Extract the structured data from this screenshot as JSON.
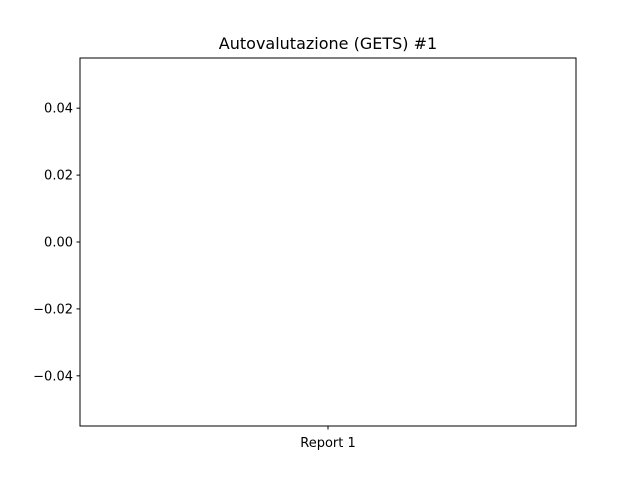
{
  "chart_data": {
    "type": "bar",
    "title": "Autovalutazione (GETS) #1",
    "xlabel": "",
    "ylabel": "",
    "categories": [
      "Report 1"
    ],
    "values": [
      0
    ],
    "ylim": [
      -0.055,
      0.055
    ],
    "yticks": [
      0.04,
      0.02,
      0.0,
      -0.02,
      -0.04
    ],
    "ytick_labels": [
      "0.04",
      "0.02",
      "0.00",
      "−0.02",
      "−0.04"
    ],
    "grid": false,
    "legend": "none"
  }
}
